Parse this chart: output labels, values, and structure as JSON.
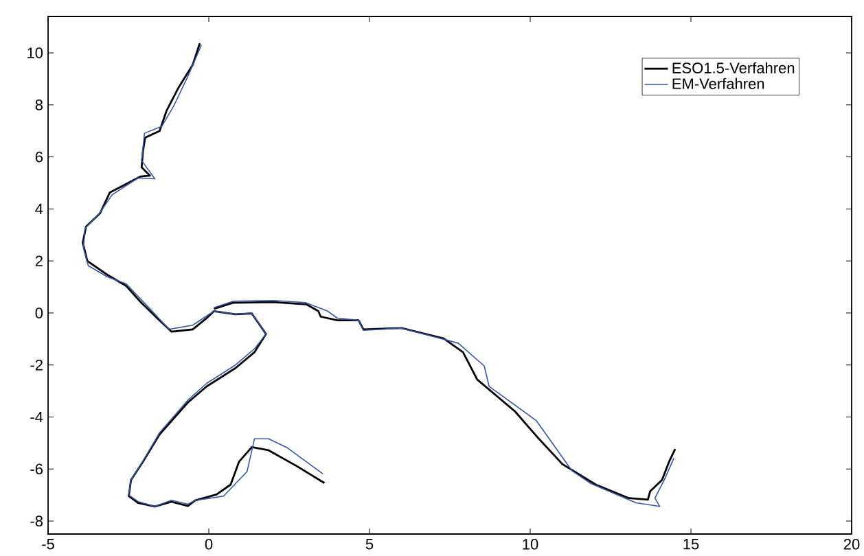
{
  "chart_data": {
    "type": "line",
    "xlim": [
      -5,
      20
    ],
    "ylim": [
      -8.5,
      11.4
    ],
    "xticks": [
      -5,
      0,
      5,
      10,
      15,
      20
    ],
    "yticks": [
      -8,
      -6,
      -4,
      -2,
      0,
      2,
      4,
      6,
      8,
      10
    ],
    "grid": false,
    "legend": "top right",
    "marker": "none",
    "line_style": "solid",
    "series": [
      {
        "name": "ESO1.5-Verfahren",
        "color": "#000000",
        "x": [
          -0.28,
          -0.5,
          -0.94,
          -1.31,
          -1.53,
          -1.98,
          -2.05,
          -2.09,
          -1.83,
          -2.12,
          -3.08,
          -3.38,
          -3.82,
          -3.92,
          -3.78,
          -3.16,
          -2.57,
          -2.12,
          -1.61,
          -1.16,
          -0.5,
          -0.06,
          0.16,
          0.83,
          1.34,
          1.78,
          1.42,
          0.83,
          -0.06,
          -0.65,
          -1.53,
          -2.05,
          -2.42,
          -2.49,
          -2.2,
          -1.68,
          -1.16,
          -0.65,
          -0.43,
          0.24,
          0.68,
          0.94,
          1.34,
          1.86,
          2.74,
          3.6,
          null,
          0.16,
          0.75,
          2.0,
          3.04,
          3.41,
          3.48,
          4.0,
          4.66,
          4.81,
          5.99,
          7.31,
          7.91,
          8.35,
          9.53,
          10.27,
          11.0,
          12.04,
          13.07,
          13.66,
          13.73,
          14.1,
          14.32,
          14.51
        ],
        "values": [
          10.37,
          9.54,
          8.67,
          7.79,
          7.0,
          6.74,
          6.2,
          5.6,
          5.28,
          5.25,
          4.63,
          3.84,
          3.32,
          2.7,
          2.0,
          1.47,
          1.04,
          0.42,
          -0.19,
          -0.72,
          -0.63,
          -0.19,
          0.07,
          -0.05,
          -0.02,
          -0.81,
          -1.51,
          -2.12,
          -2.82,
          -3.44,
          -4.67,
          -5.72,
          -6.42,
          -7.04,
          -7.3,
          -7.44,
          -7.26,
          -7.42,
          -7.21,
          -6.98,
          -6.6,
          -5.72,
          -5.16,
          -5.28,
          -5.89,
          -6.54,
          null,
          0.16,
          0.39,
          0.42,
          0.33,
          0.07,
          -0.14,
          -0.28,
          -0.28,
          -0.63,
          -0.58,
          -0.98,
          -1.51,
          -2.56,
          -3.79,
          -4.84,
          -5.81,
          -6.6,
          -7.12,
          -7.18,
          -6.86,
          -6.42,
          -5.72,
          -5.23
        ]
      },
      {
        "name": "EM-Verfahren",
        "color": "#3355aa",
        "x": [
          -0.23,
          -0.65,
          -1.09,
          -1.46,
          -2.0,
          -2.09,
          -1.68,
          -2.2,
          -3.01,
          -3.4,
          -3.85,
          -3.9,
          -3.75,
          -3.16,
          -2.57,
          -1.83,
          -1.24,
          -0.5,
          0.16,
          0.83,
          1.34,
          1.78,
          1.42,
          0.83,
          -0.06,
          -0.65,
          -1.53,
          -2.05,
          -2.42,
          -2.49,
          -2.2,
          -1.68,
          -1.16,
          -0.65,
          -0.43,
          0.46,
          1.19,
          1.42,
          1.86,
          2.45,
          3.55,
          null,
          0.16,
          0.75,
          2.0,
          3.0,
          3.7,
          4.0,
          4.66,
          4.81,
          5.99,
          7.76,
          8.57,
          8.72,
          10.19,
          11.3,
          11.89,
          13.29,
          14.03,
          13.88,
          14.17,
          14.47
        ],
        "values": [
          10.3,
          9.1,
          7.96,
          7.18,
          6.91,
          5.86,
          5.16,
          5.19,
          4.54,
          3.84,
          3.25,
          2.5,
          1.82,
          1.39,
          1.12,
          0.16,
          -0.63,
          -0.47,
          0.07,
          -0.05,
          0.0,
          -0.81,
          -1.38,
          -2.0,
          -2.7,
          -3.35,
          -4.6,
          -5.7,
          -6.42,
          -7.0,
          -7.25,
          -7.44,
          -7.2,
          -7.35,
          -7.21,
          -7.04,
          -6.1,
          -4.84,
          -4.84,
          -5.19,
          -6.19,
          null,
          0.2,
          0.45,
          0.48,
          0.4,
          0.07,
          -0.2,
          -0.28,
          -0.67,
          -0.58,
          -1.16,
          -2.04,
          -2.82,
          -4.14,
          -6.07,
          -6.56,
          -7.3,
          -7.44,
          -7.12,
          -6.42,
          -5.58
        ]
      }
    ]
  }
}
